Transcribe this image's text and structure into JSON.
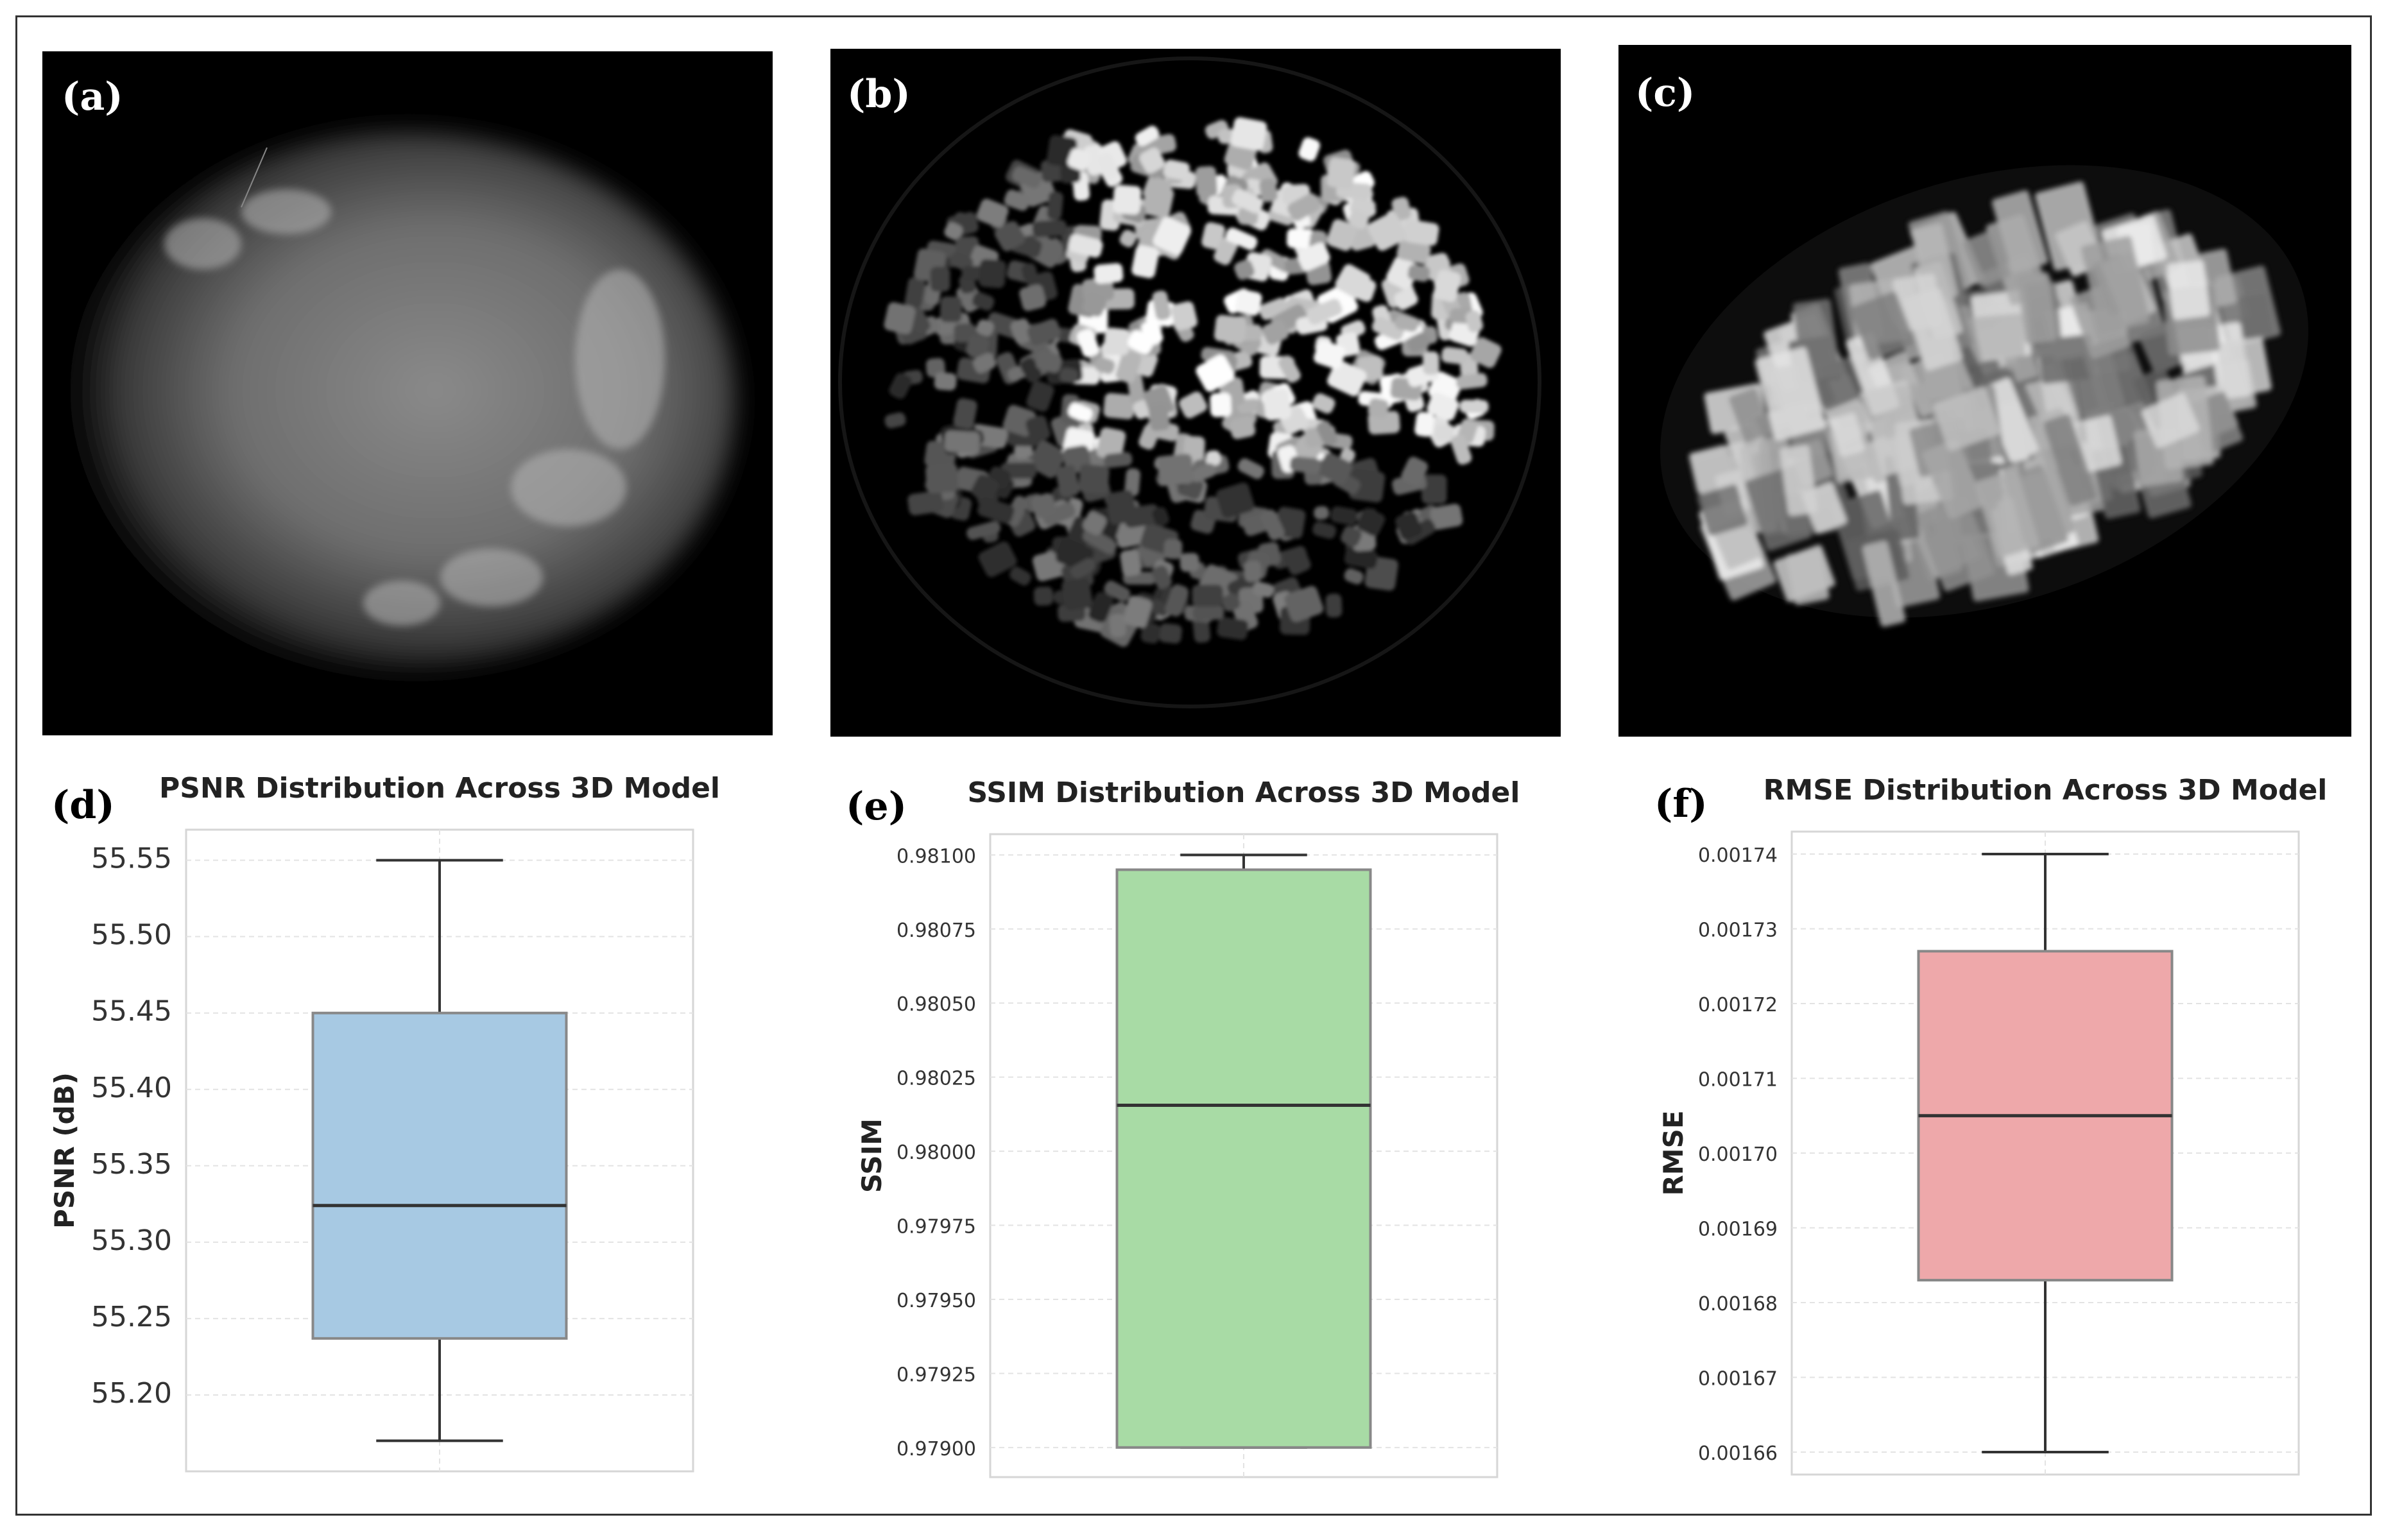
{
  "image_panels": [
    {
      "id": "a",
      "label": "(a)"
    },
    {
      "id": "b",
      "label": "(b)"
    },
    {
      "id": "c",
      "label": "(c)"
    }
  ],
  "chart_data": [
    {
      "type": "box",
      "panel_label": "(d)",
      "title": "PSNR Distribution Across 3D Model",
      "xlabel": "",
      "ylabel": "PSNR (dB)",
      "ylim": [
        55.15,
        55.57
      ],
      "yticks": [
        55.2,
        55.25,
        55.3,
        55.35,
        55.4,
        55.45,
        55.5,
        55.55
      ],
      "tick_labels": [
        "55.20",
        "55.25",
        "55.30",
        "55.35",
        "55.40",
        "55.45",
        "55.50",
        "55.55"
      ],
      "box": {
        "whisker_low": 55.17,
        "q1": 55.237,
        "median": 55.324,
        "q3": 55.45,
        "whisker_high": 55.55
      },
      "color": "#a7c9e3",
      "grid": true
    },
    {
      "type": "box",
      "panel_label": "(e)",
      "title": "SSIM Distribution Across 3D Model",
      "xlabel": "",
      "ylabel": "SSIM",
      "ylim": [
        0.9789,
        0.98107
      ],
      "yticks": [
        0.979,
        0.97925,
        0.9795,
        0.97975,
        0.98,
        0.98025,
        0.9805,
        0.98075,
        0.981
      ],
      "tick_labels": [
        "0.97900",
        "0.97925",
        "0.97950",
        "0.97975",
        "0.98000",
        "0.98025",
        "0.98050",
        "0.98075",
        "0.98100"
      ],
      "box": {
        "whisker_low": 0.979,
        "q1": 0.979,
        "median": 0.980155,
        "q3": 0.98095,
        "whisker_high": 0.981
      },
      "color": "#a8dba5",
      "grid": true
    },
    {
      "type": "box",
      "panel_label": "(f)",
      "title": "RMSE Distribution Across 3D Model",
      "xlabel": "",
      "ylabel": "RMSE",
      "ylim": [
        0.001657,
        0.001743
      ],
      "yticks": [
        0.00166,
        0.00167,
        0.00168,
        0.00169,
        0.0017,
        0.00171,
        0.00172,
        0.00173,
        0.00174
      ],
      "tick_labels": [
        "0.00166",
        "0.00167",
        "0.00168",
        "0.00169",
        "0.00170",
        "0.00171",
        "0.00172",
        "0.00173",
        "0.00174"
      ],
      "box": {
        "whisker_low": 0.00166,
        "q1": 0.001683,
        "median": 0.001705,
        "q3": 0.001727,
        "whisker_high": 0.00174
      },
      "color": "#eea8aa",
      "grid": true
    }
  ]
}
